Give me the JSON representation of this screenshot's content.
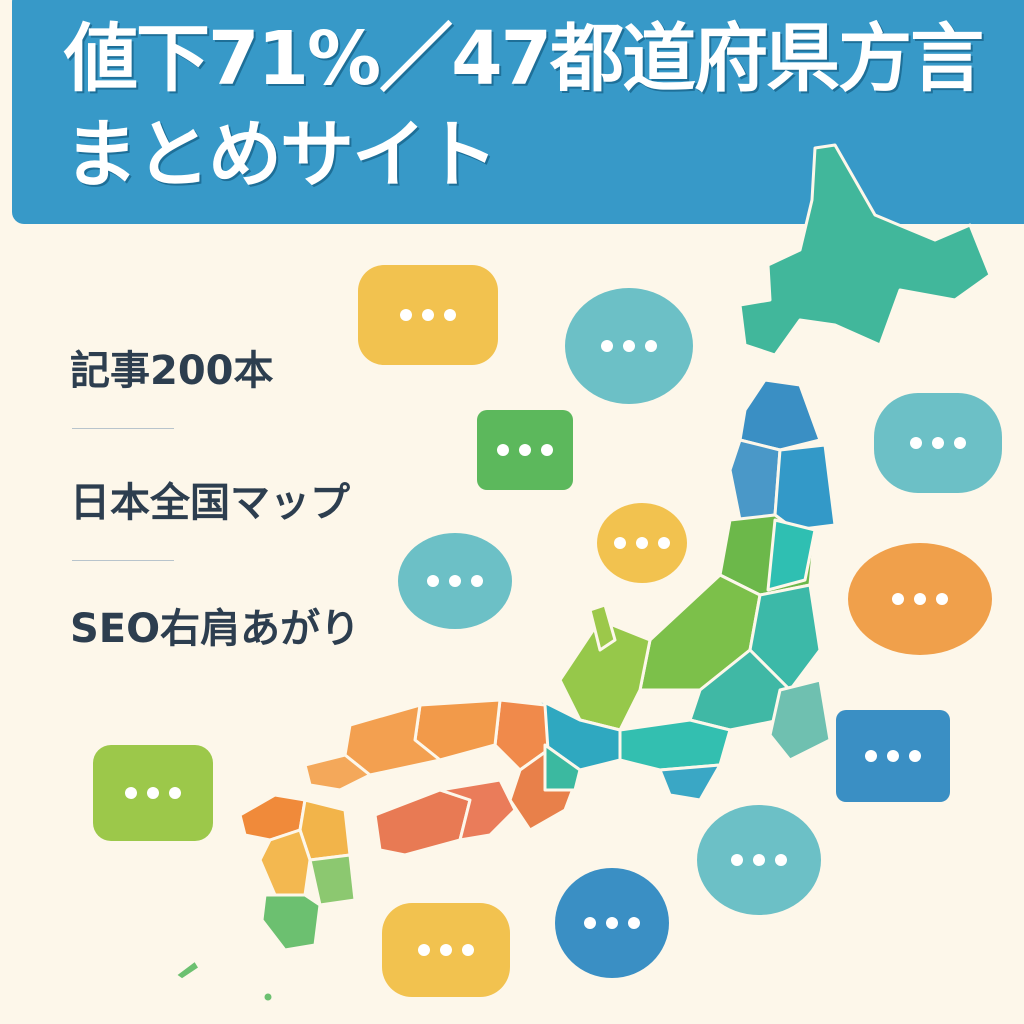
{
  "header": {
    "title_line1": "値下71%／47都道府県方言",
    "title_line2": "まとめサイト",
    "background_color": "#3799c8"
  },
  "features": [
    {
      "label": "記事200本"
    },
    {
      "label": "日本全国マップ"
    },
    {
      "label": "SEO右肩あがり"
    }
  ],
  "illustration": {
    "map": "japan-prefecture-map",
    "bubble_icon": "speech-bubble-ellipsis-icon",
    "palette": [
      "#f2c24f",
      "#6cc0c6",
      "#5cb85c",
      "#f0a04b",
      "#3a8fc4",
      "#9cc84a",
      "#3cb9a8",
      "#e8804a"
    ]
  }
}
